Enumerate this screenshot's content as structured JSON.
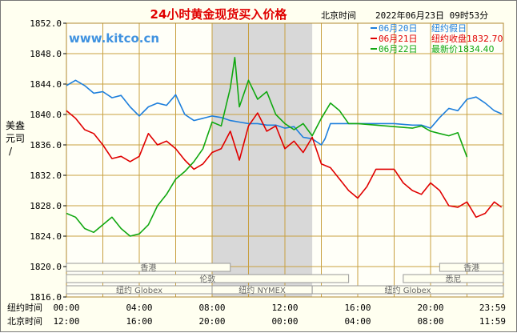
{
  "header": {
    "title": "24小时黄金现货买入价格",
    "beijing_time_label": "北京时间",
    "timestamp": "2022年06月23日 09时53分"
  },
  "watermark": "www.kitco.cn",
  "legend": [
    {
      "name": "06月20日",
      "note": "纽约假日",
      "color": "#1e7fdc"
    },
    {
      "name": "06月21日",
      "note": "纽约收盘1832.70",
      "color": "#e00000"
    },
    {
      "name": "06月22日",
      "note": "最新价1834.40",
      "color": "#11a811"
    }
  ],
  "y_axis_label": "美元/盎司",
  "market_bands": [
    {
      "label": "香港",
      "row": 0,
      "from": 0,
      "to": 9
    },
    {
      "label": "香港",
      "row": 0,
      "from": 20.5,
      "to": 24
    },
    {
      "label": "伦敦",
      "row": 1,
      "from": 0,
      "to": 15.5
    },
    {
      "label": "悉尼",
      "row": 1,
      "from": 18.5,
      "to": 24
    },
    {
      "label": "纽约 Globex",
      "row": 2,
      "from": 0,
      "to": 8
    },
    {
      "label": "纽约 NYMEX",
      "row": 2,
      "from": 8,
      "to": 13.5
    },
    {
      "label": "纽约 Globex",
      "row": 2,
      "from": 13.5,
      "to": 24
    }
  ],
  "bottom_axes": {
    "ny_label": "纽约时间",
    "ny_ticks": [
      "00:00",
      "04:00",
      "08:00",
      "12:00",
      "16:00",
      "20:00",
      "23:59"
    ],
    "bj_label": "北京时间",
    "bj_ticks": [
      "12:00",
      "16:00",
      "20:00",
      "00:00",
      "04:00",
      "08:00",
      "11:59"
    ]
  },
  "colors": {
    "grid": "#c8a040",
    "shade": "#d8d8d8",
    "title": "#e00000"
  },
  "chart_data": {
    "type": "line",
    "title": "24小时黄金现货买入价格",
    "ylabel": "美元/盎司",
    "xlabel": "纽约时间",
    "x_unit": "hours (New York time)",
    "xlim": [
      0,
      24
    ],
    "ylim": [
      1816,
      1852
    ],
    "yticks": [
      1816,
      1820,
      1824,
      1828,
      1832,
      1836,
      1840,
      1844,
      1848,
      1852
    ],
    "yticklabels": [
      "1816.0",
      "1820.0",
      "1824.0",
      "1828.0",
      "1832.0",
      "1836.0",
      "1840.0",
      "1844.0",
      "1848.0",
      "1852.0"
    ],
    "shaded_range": [
      8,
      13.5
    ],
    "grid": true,
    "legend_position": "top-right",
    "series": [
      {
        "name": "06月20日",
        "x": [
          0,
          0.5,
          1,
          1.5,
          2,
          2.5,
          3,
          3.5,
          4,
          4.5,
          5,
          5.5,
          6,
          6.5,
          7,
          7.5,
          8,
          8.5,
          9,
          9.5,
          10,
          10.5,
          11,
          11.5,
          12,
          12.5,
          13,
          13.5,
          14,
          14.2,
          14.5,
          15,
          16,
          17,
          18,
          19,
          19.5,
          20,
          20.5,
          21,
          21.5,
          22,
          22.5,
          23,
          23.5,
          23.9
        ],
        "y": [
          1843.8,
          1844.5,
          1843.8,
          1842.8,
          1843.0,
          1842.2,
          1842.5,
          1841.0,
          1839.8,
          1841.0,
          1841.5,
          1841.2,
          1842.6,
          1840.0,
          1839.2,
          1839.5,
          1839.8,
          1839.6,
          1839.2,
          1839.0,
          1838.8,
          1838.8,
          1838.6,
          1838.6,
          1838.2,
          1838.4,
          1837.0,
          1836.8,
          1836.0,
          1836.8,
          1838.8,
          1838.8,
          1838.8,
          1838.8,
          1838.8,
          1838.6,
          1838.6,
          1838.2,
          1839.6,
          1840.8,
          1840.5,
          1842.0,
          1842.3,
          1841.5,
          1840.5,
          1840.1
        ]
      },
      {
        "name": "06月21日",
        "x": [
          0,
          0.5,
          1,
          1.5,
          2,
          2.5,
          3,
          3.5,
          4,
          4.5,
          5,
          5.5,
          6,
          6.5,
          7,
          7.5,
          8,
          8.5,
          9,
          9.5,
          10,
          10.5,
          11,
          11.5,
          12,
          12.5,
          13,
          13.5,
          14,
          14.5,
          15,
          15.5,
          16,
          16.5,
          17,
          17.5,
          18,
          18.5,
          19,
          19.5,
          20,
          20.5,
          21,
          21.5,
          22,
          22.5,
          23,
          23.5,
          23.9
        ],
        "y": [
          1840.5,
          1839.5,
          1838.0,
          1837.5,
          1836.0,
          1834.2,
          1834.5,
          1833.8,
          1834.5,
          1837.5,
          1836.0,
          1836.5,
          1835.5,
          1834.0,
          1832.8,
          1833.5,
          1835.0,
          1835.5,
          1837.8,
          1834.0,
          1838.5,
          1840.2,
          1837.8,
          1838.5,
          1835.5,
          1836.5,
          1835.0,
          1837.0,
          1833.5,
          1833.0,
          1831.5,
          1830.0,
          1829.0,
          1830.5,
          1832.8,
          1832.8,
          1832.8,
          1831.0,
          1830.0,
          1829.5,
          1831.0,
          1830.0,
          1828.0,
          1827.8,
          1828.5,
          1826.5,
          1827.0,
          1828.5,
          1827.8
        ]
      },
      {
        "name": "06月22日",
        "x": [
          0,
          0.5,
          1,
          1.5,
          2,
          2.5,
          3,
          3.5,
          4,
          4.5,
          5,
          5.5,
          6,
          6.5,
          7,
          7.5,
          8,
          8.5,
          9,
          9.25,
          9.5,
          10,
          10.5,
          11,
          11.5,
          12,
          12.5,
          13,
          13.5,
          14,
          14.5,
          15,
          15.5,
          16,
          17,
          18,
          19,
          19.5,
          20,
          20.5,
          21,
          21.5,
          22
        ],
        "y": [
          1827.0,
          1826.5,
          1825.0,
          1824.5,
          1825.5,
          1826.5,
          1825.0,
          1824.0,
          1824.3,
          1825.5,
          1828.0,
          1829.5,
          1831.5,
          1832.5,
          1833.8,
          1835.5,
          1839.0,
          1838.5,
          1843.5,
          1847.5,
          1841.0,
          1844.5,
          1842.0,
          1843.0,
          1840.0,
          1838.8,
          1838.0,
          1838.8,
          1837.2,
          1839.5,
          1841.5,
          1840.5,
          1838.8,
          1838.8,
          1838.6,
          1838.4,
          1838.2,
          1838.5,
          1837.8,
          1837.5,
          1837.2,
          1837.6,
          1834.4
        ]
      }
    ]
  }
}
